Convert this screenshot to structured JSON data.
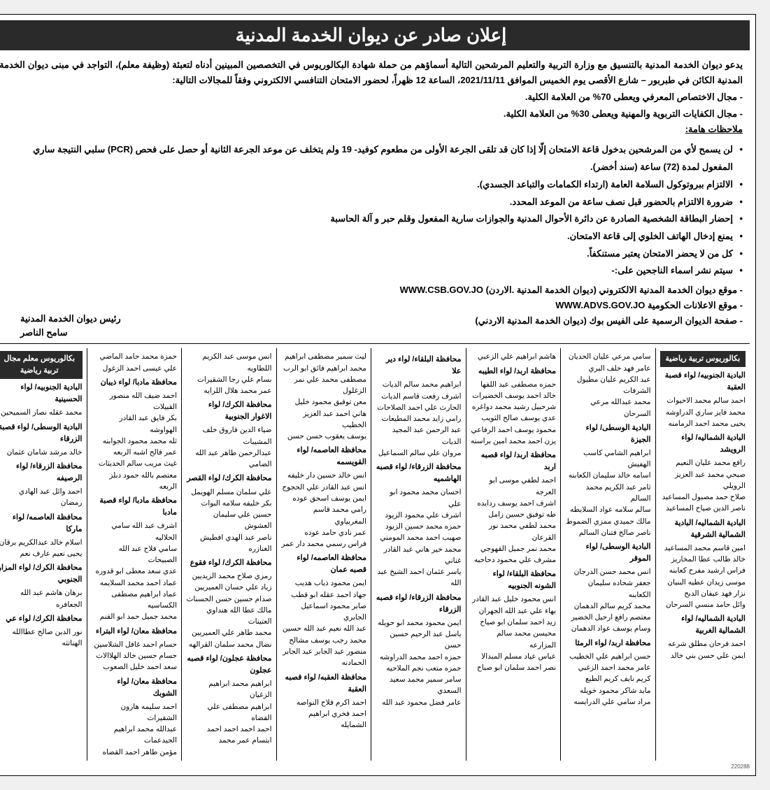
{
  "title": "إعلان صادر عن ديوان الخدمة المدنية",
  "intro_main": "يدعو ديوان الخدمة المدنية بالتنسيق مع وزارة التربية والتعليم المرشحين التالية أسماؤهم من حملة شهادة البكالوريوس في التخصصين المبينين أدناه لتعبئة (وظيفة معلم)، التواجد في مبنى ديوان الخدمة المدنية الكائن في طبربور – شارع الأقصى يوم الخميس الموافق 2021/11/11، الساعة 12 ظهراً، لحضور الامتحان التنافسي الالكتروني وفقاً للمجالات التالية:",
  "domain1": "- مجال الاختصاص المعرفي ويعطى 70% من العلامة الكلية.",
  "domain2": "- مجال الكفايات التربوية والمهنية ويعطى 30% من العلامة الكلية.",
  "notes_title": "ملاحظات هامة:",
  "notes": [
    "لن يسمح لأي من المرشحين بدخول قاعة الامتحان إلّا إذا كان قد تلقى الجرعة الأولى من مطعوم كوفيد- 19 ولم يتخلف عن موعد الجرعة الثانية أو حصل على فحص (PCR) سلبي النتيجة ساري المفعول لمدة (72) ساعة (سند أخضر).",
    "الالتزام ببروتوكول السلامة العامة (ارتداء الكمامات والتباعد الجسدي).",
    "ضرورة الالتزام بالحضور قبل نصف ساعة من الموعد المحدد.",
    "إحضار البطاقة الشخصية الصادرة عن دائرة الأحوال المدنية والجوازات سارية المفعول وقلم حبر و آلة الحاسبة",
    "يمنع إدخال الهاتف الخلوي إلى قاعة الامتحان.",
    "كل من لا يحضر الامتحان يعتبر مستنكفاً.",
    "سيتم نشر اسماء الناجحين على:-"
  ],
  "links": [
    "- موقع ديوان الخدمة المدنية الالكتروني (ديوان الخدمة المدنية .الاردن) WWW.CSB.GOV.JO",
    "- موقع الاعلانات الحكومية WWW.ADVS.GOV.JO",
    "- صفحة الديوان الرسمية على الفيس بوك (ديوان الخدمة المدنية الاردني)"
  ],
  "signature_title": "رئيس ديوان الخدمة المدنية",
  "signature_name": "سامح الناصر",
  "category1": "بكالوريوس تربية رياضية",
  "category2": "بكالوريوس معلم مجال تربية رياضية",
  "columns": [
    {
      "header": "بكالوريوس تربية رياضية",
      "blocks": [
        {
          "region": "البادية الجنوبيه/ لواء قصبة العقبة",
          "names": [
            "احمد سالم محمد الاحيوات",
            "محمد فايز ساري الدراوشه",
            "يحيى محمد احمد الرمامنه"
          ]
        },
        {
          "region": "البادية الشماليه/ لواء الرويشد",
          "names": [
            "رافع محمد عليان النعيم",
            "صبحي محمد عبد العزيز الرويلي",
            "صلاح حمد مصبول المساعيد",
            "ناصر الدين صياح المساعيد"
          ]
        },
        {
          "region": "البادية الشماليه/ البادية الشمالية الشرقية",
          "names": [
            "امين قاسم محمد المساعيد",
            "خالد طالب عطا المخاريز",
            "فراس ارشيد مفرح كعابنه",
            "موسى زيدان عطيه البنيان",
            "نزار فهد عيفان الدبح",
            "وائل حامد منسي السرحان"
          ]
        },
        {
          "region": "البادية الشماليه/ لواء الشمالية الغربية",
          "names": [
            "احمد فرحان مطلق شرعه",
            "ايمن علي حسن بني خالد"
          ]
        }
      ]
    },
    {
      "header": null,
      "blocks": [
        {
          "region": "",
          "names": [
            "سامي مرعي عليان الحديان",
            "عامر فهد خلف البري",
            "عبد الكريم عليان مطيول الشرفات",
            "محمد عبدالله مرعي السرحان"
          ]
        },
        {
          "region": "البادية الوسطى/ لواء الجيزة",
          "names": [
            "ابراهيم الشامي كاسب الهفيش",
            "اسامه خالد سليمان الكعابنه",
            "ثامر عبد الكريم محمد السالم",
            "سالم سلامه عواد السلايطه",
            "مالك حميدي ممزي الضموط",
            "ناصر صالح فتنان السالم"
          ]
        },
        {
          "region": "البادية الوسطى/ لواء الموقر",
          "names": [
            "انس محمد حسن الدرجان",
            "جعفر شحاده سليمان الكعابنه",
            "محمد كريم سالم الدهمان",
            "معتصم رافع ارحيل الخضير",
            "وسام يوسف عواد الدهمان"
          ]
        },
        {
          "region": "محافظة اربد/ لواء الرمثا",
          "names": [
            "حسن ابراهيم علي الخطيب",
            "عامر محمد احمد الزغبي",
            "كريم نايف كريم الطبع",
            "مايد شاكر محمود خويله",
            "مراد سامي علي الدرايسه"
          ]
        }
      ]
    },
    {
      "header": null,
      "blocks": [
        {
          "region": "",
          "names": [
            "هاشم ابراهيم علي الزعبي"
          ]
        },
        {
          "region": "محافظة اربد/ لواء الطيبه",
          "names": [
            "حمزه مصطفى عبد اللفها",
            "خالد احمد يوسف الخضيرات",
            "شرحبيل رشيد محمد دواغره",
            "عدي يوسف صالح الثويب",
            "محمود يوسف احمد الرفاعي",
            "يزن احمد محمد امين براسنه"
          ]
        },
        {
          "region": "محافظة اربد/ لواء قصبه اربد",
          "names": [
            "احمد لطفي موسى ابو العرجه",
            "اشرف احمد يوسف ردايده",
            "طه توفيق حسين زامل",
            "محمد لطفي محمد نور القرعان",
            "محمد نمر جميل القهوجي",
            "مشرف علي محمود دحاحبه"
          ]
        },
        {
          "region": "محافظة البلقاء/ لواء الشونه الجنوبيه",
          "names": [
            "انس محمود خليل عبد القادر",
            "بهاء علي عبد الله الجهران",
            "زيد احمد سلمان ابو صياح",
            "محيسن محمد سالم المزارعه",
            "عباس عياد مسلم المبدالا",
            "نصر احمد سلمان ابو صباح"
          ]
        }
      ]
    },
    {
      "header": null,
      "blocks": [
        {
          "region": "محافظة البلقاء/ لواء دير علا",
          "names": [
            "ابراهيم محمد سالم الديات",
            "اشرف رفعت قاسم الديات",
            "الحارث علي احمد الصلاحات",
            "رامي زايد محمد المطيعات",
            "عبد الرحمن عبد المجيد الديات",
            "مروان علي سالم السماعيل"
          ]
        },
        {
          "region": "محافظة الزرقاء/ لواء قصبه الهاشميه",
          "names": [
            "احسان محمد محمود ابو علي",
            "اشرف علي محمود الزيود",
            "حمزه محمد حسين الزيود",
            "صهيب احمد محمد المومني",
            "محمد خير هاني عبد القادر غناني",
            "ياسر عثمان احمد الشيخ عبد الله"
          ]
        },
        {
          "region": "محافظة الزرقاء/ لواء قصبه الزرقاء",
          "names": [
            "ايمن محمود محمد ابو حويله",
            "باسل عبد الرحيم حسين حسن",
            "حمزه احمد محمد الدراوشه",
            "حمزه متعب نجم الملاحيه",
            "سامر سمير محمد سعيد السعدي",
            "عامر فضل محمود عبد الله"
          ]
        }
      ]
    },
    {
      "header": null,
      "blocks": [
        {
          "region": "",
          "names": [
            "ليث سمير مصطفى ابراهيم",
            "محمد ابراهيم فائق ابو الرب",
            "مصطفى محمد علي نمر الزغلول",
            "معن توفيق محمود خليل",
            "هاني احمد عبد العزيز الخطيب",
            "يوسف يعقوب حسن حسن"
          ]
        },
        {
          "region": "محافظة العاصمه/ لواء القويسمه",
          "names": [
            "انس خالد حسين دار خليفه",
            "انس عبد القادر علي الحجوج",
            "ايمن يوسف اسحق عوده",
            "رامي محمد قاسم المغربياوي",
            "عمر نادي حامد عوده",
            "فراس رسمي محمد دار عمر"
          ]
        },
        {
          "region": "محافظة العاصمه/ لواء قصبه عمان",
          "names": [
            "ايمن محمود ذياب هديب",
            "جهاد احمد عقله ابو قطب",
            "صابر محمود اسماعيل الجابري",
            "عبد الله نعيم عبد الله حسين",
            "محمد رجب يوسف مشالح",
            "منصور عبد الجابر عبد الجابر الحمادنه"
          ]
        },
        {
          "region": "محافظة العقبه/ لواء قصبه العقبة",
          "names": [
            "احمد اكرم فلاح النواصه",
            "احمد فخري ابراهيم الشمايله"
          ]
        }
      ]
    },
    {
      "header": null,
      "blocks": [
        {
          "region": "",
          "names": [
            "انس موسى عبد الكريم اللطاويه",
            "بسام علي رجا الشقيرات",
            "عمر محمد هلال اللرايه"
          ]
        },
        {
          "region": "محافظة الكرك/ لواء الاغوار الجنوبية",
          "names": [
            "ضياء الدين فاروق خلف المشيبات",
            "عبدالرحمن طاهر عبد الله الضامي"
          ]
        },
        {
          "region": "محافظة الكرك/ لواء القصر",
          "names": [
            "علي سلمان مسلم الهويمل",
            "بكر خليفه سلامه البوات",
            "حسين علي سليمان العشوش",
            "ناصر عبد الهدي افطيش الغنازره"
          ]
        },
        {
          "region": "محافظة الكرك/ لواء فقوع",
          "names": [
            "رمزي صلاح محمد الزيديين",
            "زياد علي حسان العميريين",
            "صدام حسين حسن الحسنات",
            "مالك عطا الله هنداوي العتينات",
            "محمد طاهر علي العميريين",
            "نضال محمد سلمان القرالهه"
          ]
        },
        {
          "region": "محافظة عجلون/ لواء قصبه عجلون",
          "names": [
            "ابراهيم محمد ابراهيم الزغيان",
            "ابراهيم مصطفى علي القضاه",
            "احمد احمد احمد احمد",
            "ابتسام عمر محمد"
          ]
        }
      ]
    },
    {
      "header": null,
      "blocks": [
        {
          "region": "",
          "names": [
            "حمزة محمد حامد الماضي",
            "علي عيسى احمد الزغول"
          ]
        },
        {
          "region": "محافظة مادبا/ لواء ذيبان",
          "names": [
            "احمد ضيف الله منصور القبيلات",
            "بكر فايق عبد القادر الهواوشه",
            "ثله محمد محمود الجوابنه",
            "عمر فالح اشبه الربعه",
            "غيث مريب سالم الحديثات",
            "معتصم بالله حمود دبلز الربعه"
          ]
        },
        {
          "region": "محافظة مادبا/ لواء قصبة مادبا",
          "names": [
            "اشرف عبد الله سامي الحلاليه",
            "سامي فلاح عبد الله الصبيحات",
            "عدي سعد معطى ابو قدوره",
            "عماد احمد محمد السلايمه",
            "عماد ابراهيم مصطفى الكساسيه",
            "محمد جميل حمد ابو القنم"
          ]
        },
        {
          "region": "محافظة معان/ لواء البتراء",
          "names": [
            "حسام احمد غافل الشلاسين",
            "حسام حسين خالد الهلاالات",
            "سعد احمد خليل الصعوب"
          ]
        },
        {
          "region": "محافظة معان/ لواء الشوبك",
          "names": [
            "احمد سليمه هارون الشقيرات",
            "عبدالله محمد ابراهيم الجيدعمات",
            "مؤمن طاهر احمد القضاه"
          ]
        }
      ]
    },
    {
      "header": "بكالوريوس معلم مجال تربية رياضية",
      "blocks": [
        {
          "region": "البادية الجنوبيه/ لواء الحسينية",
          "names": [
            "محمد عقله نصار السميحين"
          ]
        },
        {
          "region": "البادية الوسطى/ لواء قصبة الزرقاء",
          "names": [
            "خالد مرشد شامان عثمان"
          ]
        },
        {
          "region": "محافظة الزرقاء/ لواء الرصيفه",
          "names": [
            "احمد وائل عبد الهادي رمضان"
          ]
        },
        {
          "region": "محافظة العاصمه/ لواء ماركا",
          "names": [
            "اسلام خالد عبدالكريم برقان",
            "يحيى نعيم عارف نعم"
          ]
        },
        {
          "region": "محافظة الكرك/ لواء المزار الجنوبي",
          "names": [
            "برهان هاشم عبد الله الجعافره"
          ]
        },
        {
          "region": "محافظة الكرك/ لواء عي",
          "names": [
            "نور الدين صالح عطاالله الهناتثه"
          ]
        }
      ]
    }
  ],
  "footer_code": "220288"
}
